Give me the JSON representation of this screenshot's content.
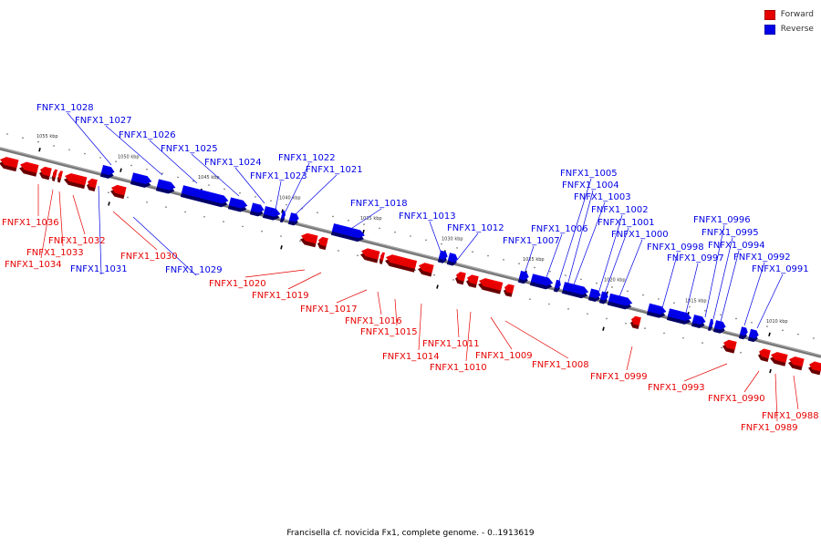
{
  "colors": {
    "forward": "#e60000",
    "reverse": "#0000e6",
    "backbone": "#777777"
  },
  "legend": [
    {
      "label": "Forward",
      "color": "#e60000"
    },
    {
      "label": "Reverse",
      "color": "#0000e6"
    }
  ],
  "caption": "Francisella cf. novicida Fx1, complete genome. - 0..1913619",
  "scale_ticks": [
    "1055 kbp",
    "1050 kbp",
    "1045 kbp",
    "1040 kbp",
    "1035 kbp",
    "1030 kbp",
    "1025 kbp",
    "1020 kbp",
    "1015 kbp",
    "1010 kbp"
  ],
  "genes": [
    {
      "name": "FNFX1_1028",
      "strand": "reverse"
    },
    {
      "name": "FNFX1_1027",
      "strand": "reverse"
    },
    {
      "name": "FNFX1_1026",
      "strand": "reverse"
    },
    {
      "name": "FNFX1_1025",
      "strand": "reverse"
    },
    {
      "name": "FNFX1_1024",
      "strand": "reverse"
    },
    {
      "name": "FNFX1_1023",
      "strand": "reverse"
    },
    {
      "name": "FNFX1_1022",
      "strand": "reverse"
    },
    {
      "name": "FNFX1_1021",
      "strand": "reverse"
    },
    {
      "name": "FNFX1_1018",
      "strand": "reverse"
    },
    {
      "name": "FNFX1_1013",
      "strand": "reverse"
    },
    {
      "name": "FNFX1_1012",
      "strand": "reverse"
    },
    {
      "name": "FNFX1_1005",
      "strand": "reverse"
    },
    {
      "name": "FNFX1_1004",
      "strand": "reverse"
    },
    {
      "name": "FNFX1_1003",
      "strand": "reverse"
    },
    {
      "name": "FNFX1_1002",
      "strand": "reverse"
    },
    {
      "name": "FNFX1_1001",
      "strand": "reverse"
    },
    {
      "name": "FNFX1_1000",
      "strand": "reverse"
    },
    {
      "name": "FNFX1_1006",
      "strand": "reverse"
    },
    {
      "name": "FNFX1_1007",
      "strand": "reverse"
    },
    {
      "name": "FNFX1_0998",
      "strand": "reverse"
    },
    {
      "name": "FNFX1_0997",
      "strand": "reverse"
    },
    {
      "name": "FNFX1_0996",
      "strand": "reverse"
    },
    {
      "name": "FNFX1_0995",
      "strand": "reverse"
    },
    {
      "name": "FNFX1_0994",
      "strand": "reverse"
    },
    {
      "name": "FNFX1_0992",
      "strand": "reverse"
    },
    {
      "name": "FNFX1_0991",
      "strand": "reverse"
    },
    {
      "name": "FNFX1_1031",
      "strand": "reverse"
    },
    {
      "name": "FNFX1_1029",
      "strand": "reverse"
    },
    {
      "name": "FNFX1_1036",
      "strand": "forward"
    },
    {
      "name": "FNFX1_1032",
      "strand": "forward"
    },
    {
      "name": "FNFX1_1033",
      "strand": "forward"
    },
    {
      "name": "FNFX1_1034",
      "strand": "forward"
    },
    {
      "name": "FNFX1_1030",
      "strand": "forward"
    },
    {
      "name": "FNFX1_1020",
      "strand": "forward"
    },
    {
      "name": "FNFX1_1019",
      "strand": "forward"
    },
    {
      "name": "FNFX1_1017",
      "strand": "forward"
    },
    {
      "name": "FNFX1_1016",
      "strand": "forward"
    },
    {
      "name": "FNFX1_1015",
      "strand": "forward"
    },
    {
      "name": "FNFX1_1014",
      "strand": "forward"
    },
    {
      "name": "FNFX1_1011",
      "strand": "forward"
    },
    {
      "name": "FNFX1_1010",
      "strand": "forward"
    },
    {
      "name": "FNFX1_1009",
      "strand": "forward"
    },
    {
      "name": "FNFX1_1008",
      "strand": "forward"
    },
    {
      "name": "FNFX1_0999",
      "strand": "forward"
    },
    {
      "name": "FNFX1_0993",
      "strand": "forward"
    },
    {
      "name": "FNFX1_0990",
      "strand": "forward"
    },
    {
      "name": "FNFX1_0988",
      "strand": "forward"
    },
    {
      "name": "FNFX1_0989",
      "strand": "forward"
    }
  ]
}
